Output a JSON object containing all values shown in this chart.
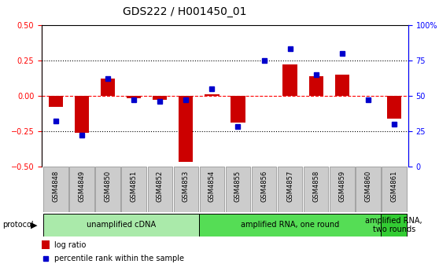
{
  "title": "GDS222 / H001450_01",
  "samples": [
    "GSM4848",
    "GSM4849",
    "GSM4850",
    "GSM4851",
    "GSM4852",
    "GSM4853",
    "GSM4854",
    "GSM4855",
    "GSM4856",
    "GSM4857",
    "GSM4858",
    "GSM4859",
    "GSM4860",
    "GSM4861"
  ],
  "log_ratio": [
    -0.08,
    -0.26,
    0.12,
    -0.02,
    -0.03,
    -0.47,
    0.01,
    -0.19,
    0.0,
    0.22,
    0.14,
    0.15,
    0.0,
    -0.16
  ],
  "percentile": [
    32,
    22,
    62,
    47,
    46,
    47,
    55,
    28,
    75,
    83,
    65,
    80,
    47,
    30
  ],
  "ylim_left": [
    -0.5,
    0.5
  ],
  "ylim_right": [
    0,
    100
  ],
  "yticks_left": [
    -0.5,
    -0.25,
    0,
    0.25,
    0.5
  ],
  "yticks_right": [
    0,
    25,
    50,
    75,
    100
  ],
  "dotted_lines": [
    -0.25,
    0.25
  ],
  "protocol_groups": [
    {
      "label": "unamplified cDNA",
      "start": 0,
      "end": 5,
      "color": "#AAEAAA"
    },
    {
      "label": "amplified RNA, one round",
      "start": 6,
      "end": 12,
      "color": "#55DD55"
    },
    {
      "label": "amplified RNA,\ntwo rounds",
      "start": 13,
      "end": 13,
      "color": "#33CC33"
    }
  ],
  "bar_color": "#CC0000",
  "dot_color": "#0000CC",
  "legend_entries": [
    "log ratio",
    "percentile rank within the sample"
  ],
  "background_color": "#ffffff",
  "bar_width": 0.55,
  "title_fontsize": 10,
  "tick_fontsize": 7,
  "label_fontsize": 6,
  "proto_fontsize": 7
}
